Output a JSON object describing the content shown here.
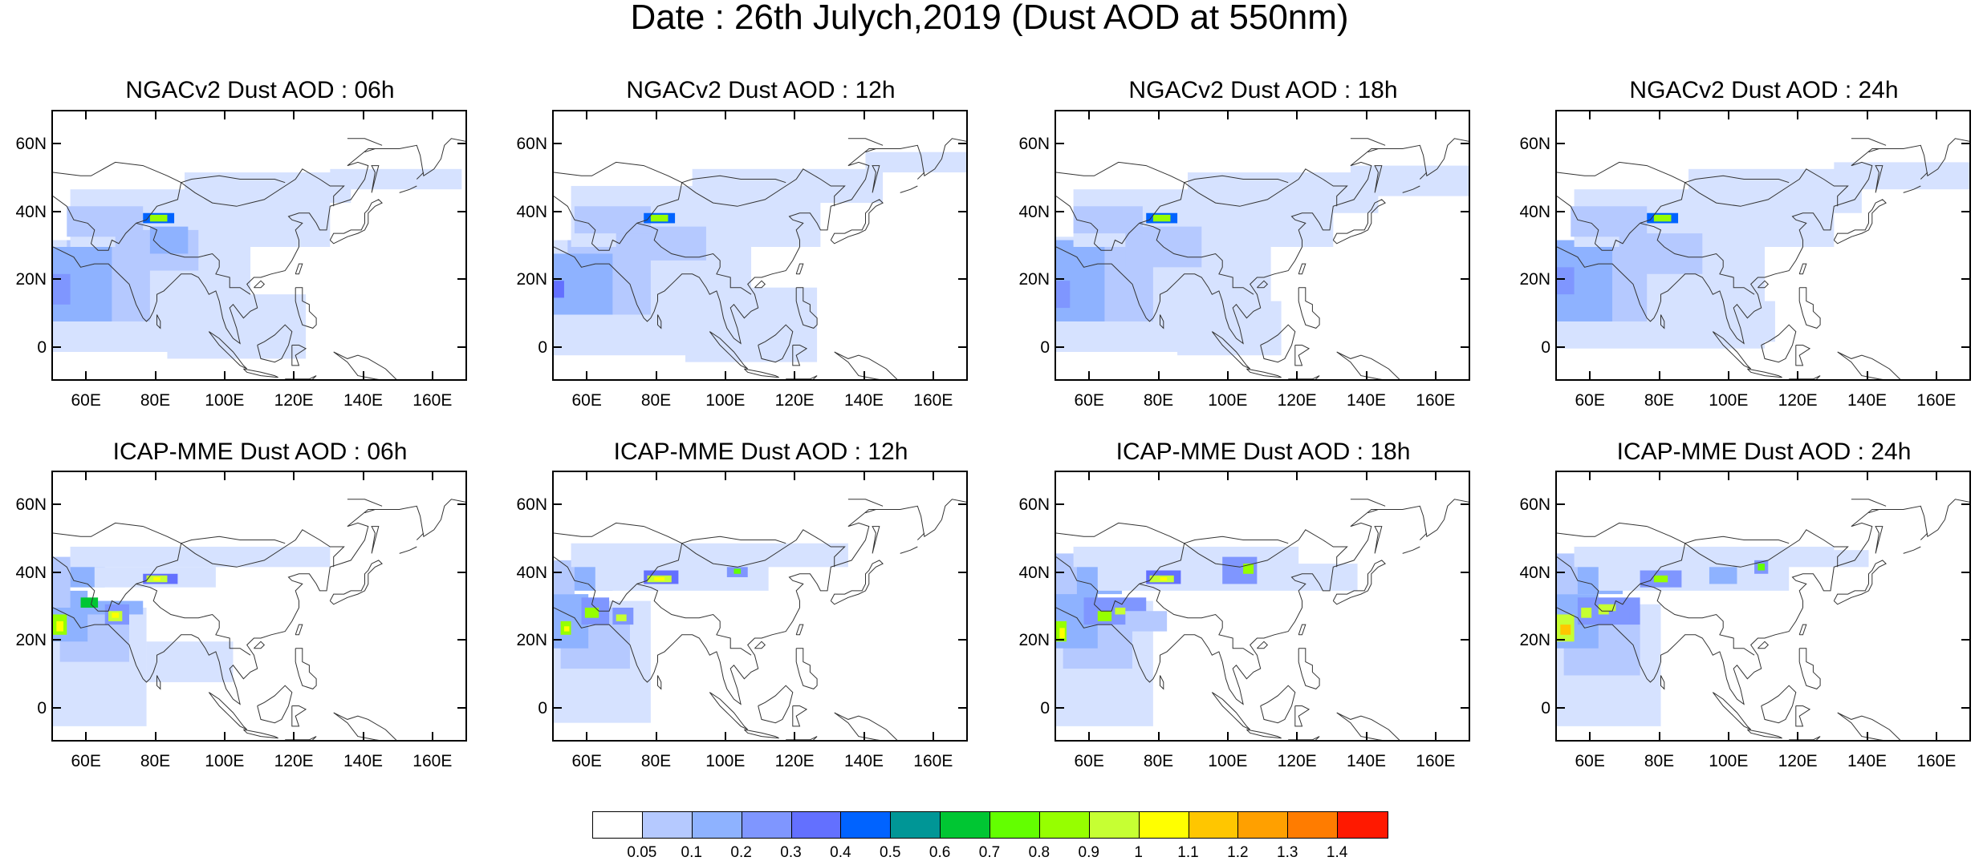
{
  "title": "Date : 26th Julych,2019 (Dust AOD at 550nm)",
  "panels": [
    {
      "title": "NGACv2 Dust AOD : 06h",
      "model": "NGACv2",
      "hour": "06h"
    },
    {
      "title": "NGACv2 Dust AOD : 12h",
      "model": "NGACv2",
      "hour": "12h"
    },
    {
      "title": "NGACv2 Dust AOD : 18h",
      "model": "NGACv2",
      "hour": "18h"
    },
    {
      "title": "NGACv2 Dust AOD : 24h",
      "model": "NGACv2",
      "hour": "24h"
    },
    {
      "title": "ICAP-MME Dust AOD : 06h",
      "model": "ICAP-MME",
      "hour": "06h"
    },
    {
      "title": "ICAP-MME Dust AOD : 12h",
      "model": "ICAP-MME",
      "hour": "12h"
    },
    {
      "title": "ICAP-MME Dust AOD : 18h",
      "model": "ICAP-MME",
      "hour": "18h"
    },
    {
      "title": "ICAP-MME Dust AOD : 24h",
      "model": "ICAP-MME",
      "hour": "24h"
    }
  ],
  "axes": {
    "lat_labels": [
      "60N",
      "40N",
      "20N",
      "0"
    ],
    "lat_values": [
      60,
      40,
      20,
      0
    ],
    "lon_labels": [
      "60E",
      "80E",
      "100E",
      "120E",
      "140E",
      "160E"
    ],
    "lon_values": [
      60,
      80,
      100,
      120,
      140,
      160
    ],
    "lat_range": [
      -10,
      70
    ],
    "lon_range": [
      50,
      170
    ]
  },
  "colorbar": {
    "labels": [
      "0.05",
      "0.1",
      "0.2",
      "0.3",
      "0.4",
      "0.5",
      "0.6",
      "0.7",
      "0.8",
      "0.9",
      "1",
      "1.1",
      "1.2",
      "1.3",
      "1.4"
    ],
    "colors": [
      "#ffffff",
      "#d6e2ff",
      "#b5c9ff",
      "#8eb2ff",
      "#7f96ff",
      "#6370ff",
      "#0063ff",
      "#009696",
      "#00c633",
      "#63ff00",
      "#96ff00",
      "#c6ff33",
      "#ffff00",
      "#ffc600",
      "#ffa000",
      "#ff7c00",
      "#ff1900"
    ]
  }
}
